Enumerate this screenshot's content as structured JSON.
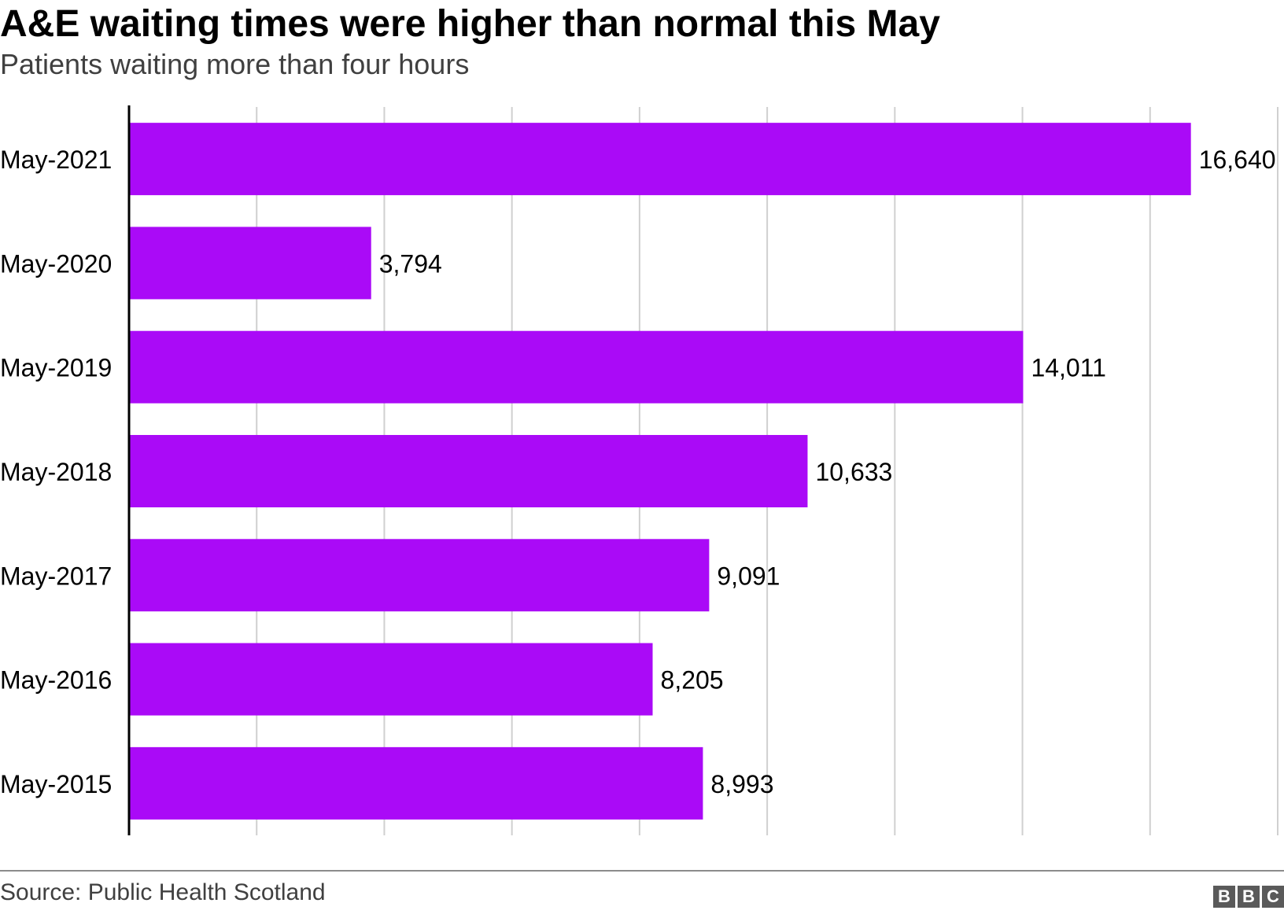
{
  "header": {
    "title": "A&E waiting times were higher than normal this May",
    "subtitle": "Patients waiting more than four hours"
  },
  "footer": {
    "source": "Source: Public Health Scotland",
    "logo_letters": [
      "B",
      "B",
      "C"
    ]
  },
  "colors": {
    "bar": "#aa0af7",
    "gridline": "#d0d0d0",
    "axis": "#000000"
  },
  "chart_data": {
    "type": "bar",
    "orientation": "horizontal",
    "title": "A&E waiting times were higher than normal this May",
    "subtitle": "Patients waiting more than four hours",
    "categories": [
      "May-2021",
      "May-2020",
      "May-2019",
      "May-2018",
      "May-2017",
      "May-2016",
      "May-2015"
    ],
    "values": [
      16640,
      3794,
      14011,
      10633,
      9091,
      8205,
      8993
    ],
    "data_labels": [
      "16,640",
      "3,794",
      "14,011",
      "10,633",
      "9,091",
      "8,205",
      "8,993"
    ],
    "xlim": [
      0,
      18000
    ],
    "gridline_step": 2000,
    "grid": true,
    "x_tick_labels_shown": false,
    "legend": "none"
  }
}
